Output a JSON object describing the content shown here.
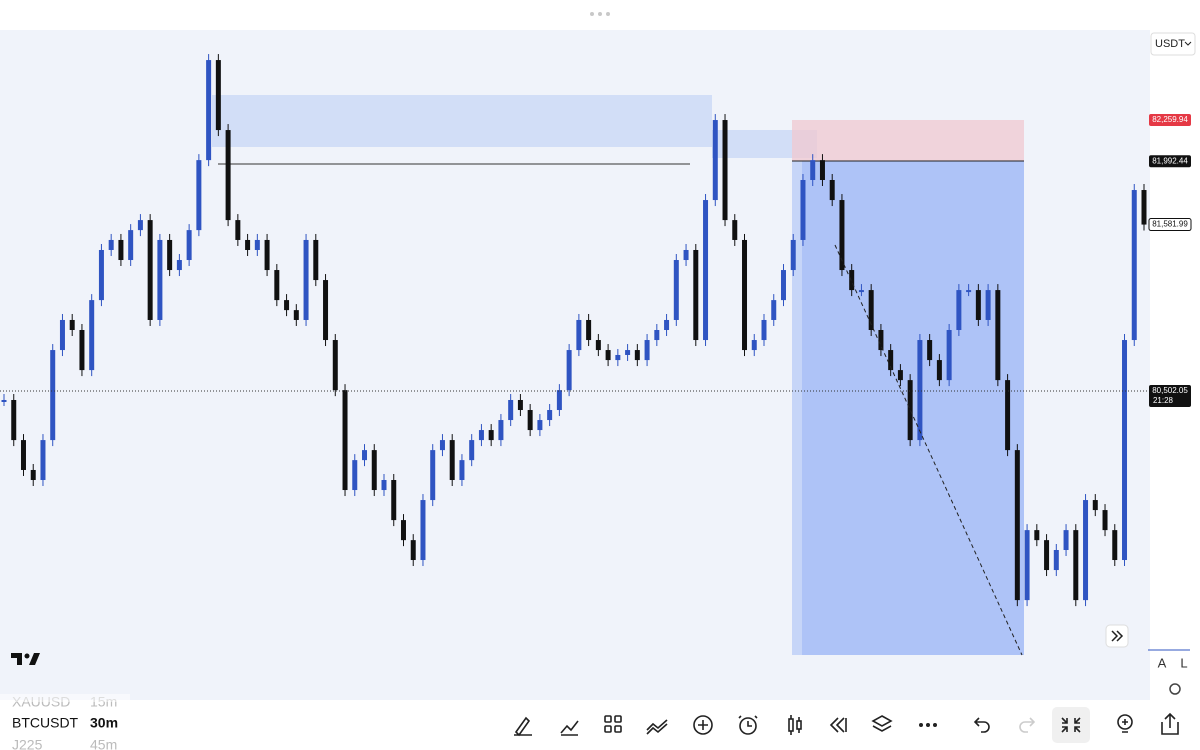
{
  "header": {
    "currency": "USDT"
  },
  "chart_data": {
    "type": "candlestick",
    "up_color": "#2f54c2",
    "down_color": "#111111",
    "ylim": [
      78498,
      82844
    ],
    "values": [
      80444,
      80184,
      79990,
      79925,
      80184,
      80768,
      80963,
      80898,
      80638,
      81092,
      81417,
      81482,
      81352,
      81546,
      81611,
      80963,
      81482,
      81287,
      81352,
      81546,
      82000,
      82649,
      82195,
      81611,
      81482,
      81417,
      81482,
      81287,
      81092,
      81027,
      80963,
      81482,
      81222,
      80833,
      80508,
      79860,
      80054,
      80119,
      79860,
      79925,
      79665,
      79535,
      79406,
      79795,
      80119,
      80184,
      79925,
      80054,
      80184,
      80249,
      80184,
      80314,
      80444,
      80379,
      80249,
      80314,
      80379,
      80508,
      80768,
      80963,
      80833,
      80768,
      80703,
      80736,
      80768,
      80703,
      80833,
      80898,
      80963,
      81352,
      81417,
      80833,
      81741,
      82260,
      81611,
      81482,
      80768,
      80833,
      80963,
      81092,
      81287,
      81482,
      81871,
      82000,
      81871,
      81741,
      81287,
      81157,
      81157,
      80898,
      80768,
      80638,
      80573,
      80184,
      80833,
      80703,
      80573,
      80898,
      81157,
      81157,
      80963,
      81157,
      80573,
      80119,
      79146,
      79600,
      79535,
      79341,
      79471,
      79600,
      79146,
      79795,
      79730,
      79600,
      79406,
      80833,
      81806,
      81582
    ],
    "price_labels": [
      {
        "value": 82259.94,
        "label": "82,259.94",
        "color": "#e53945"
      },
      {
        "value": 81992.44,
        "label": "81,992.44",
        "color": "#111111"
      },
      {
        "value": 81581.99,
        "label": "81,581.99",
        "color": "#ffffff"
      },
      {
        "value": 80502.05,
        "label": "80,502.05",
        "color": "#111111",
        "countdown": "21:28"
      }
    ]
  },
  "scale_buttons": [
    "A",
    "L"
  ],
  "watchlist": [
    {
      "symbol": "XAUUSD",
      "interval": "15m"
    },
    {
      "symbol": "BTCUSDT",
      "interval": "30m"
    },
    {
      "symbol": "J225",
      "interval": "45m"
    }
  ]
}
